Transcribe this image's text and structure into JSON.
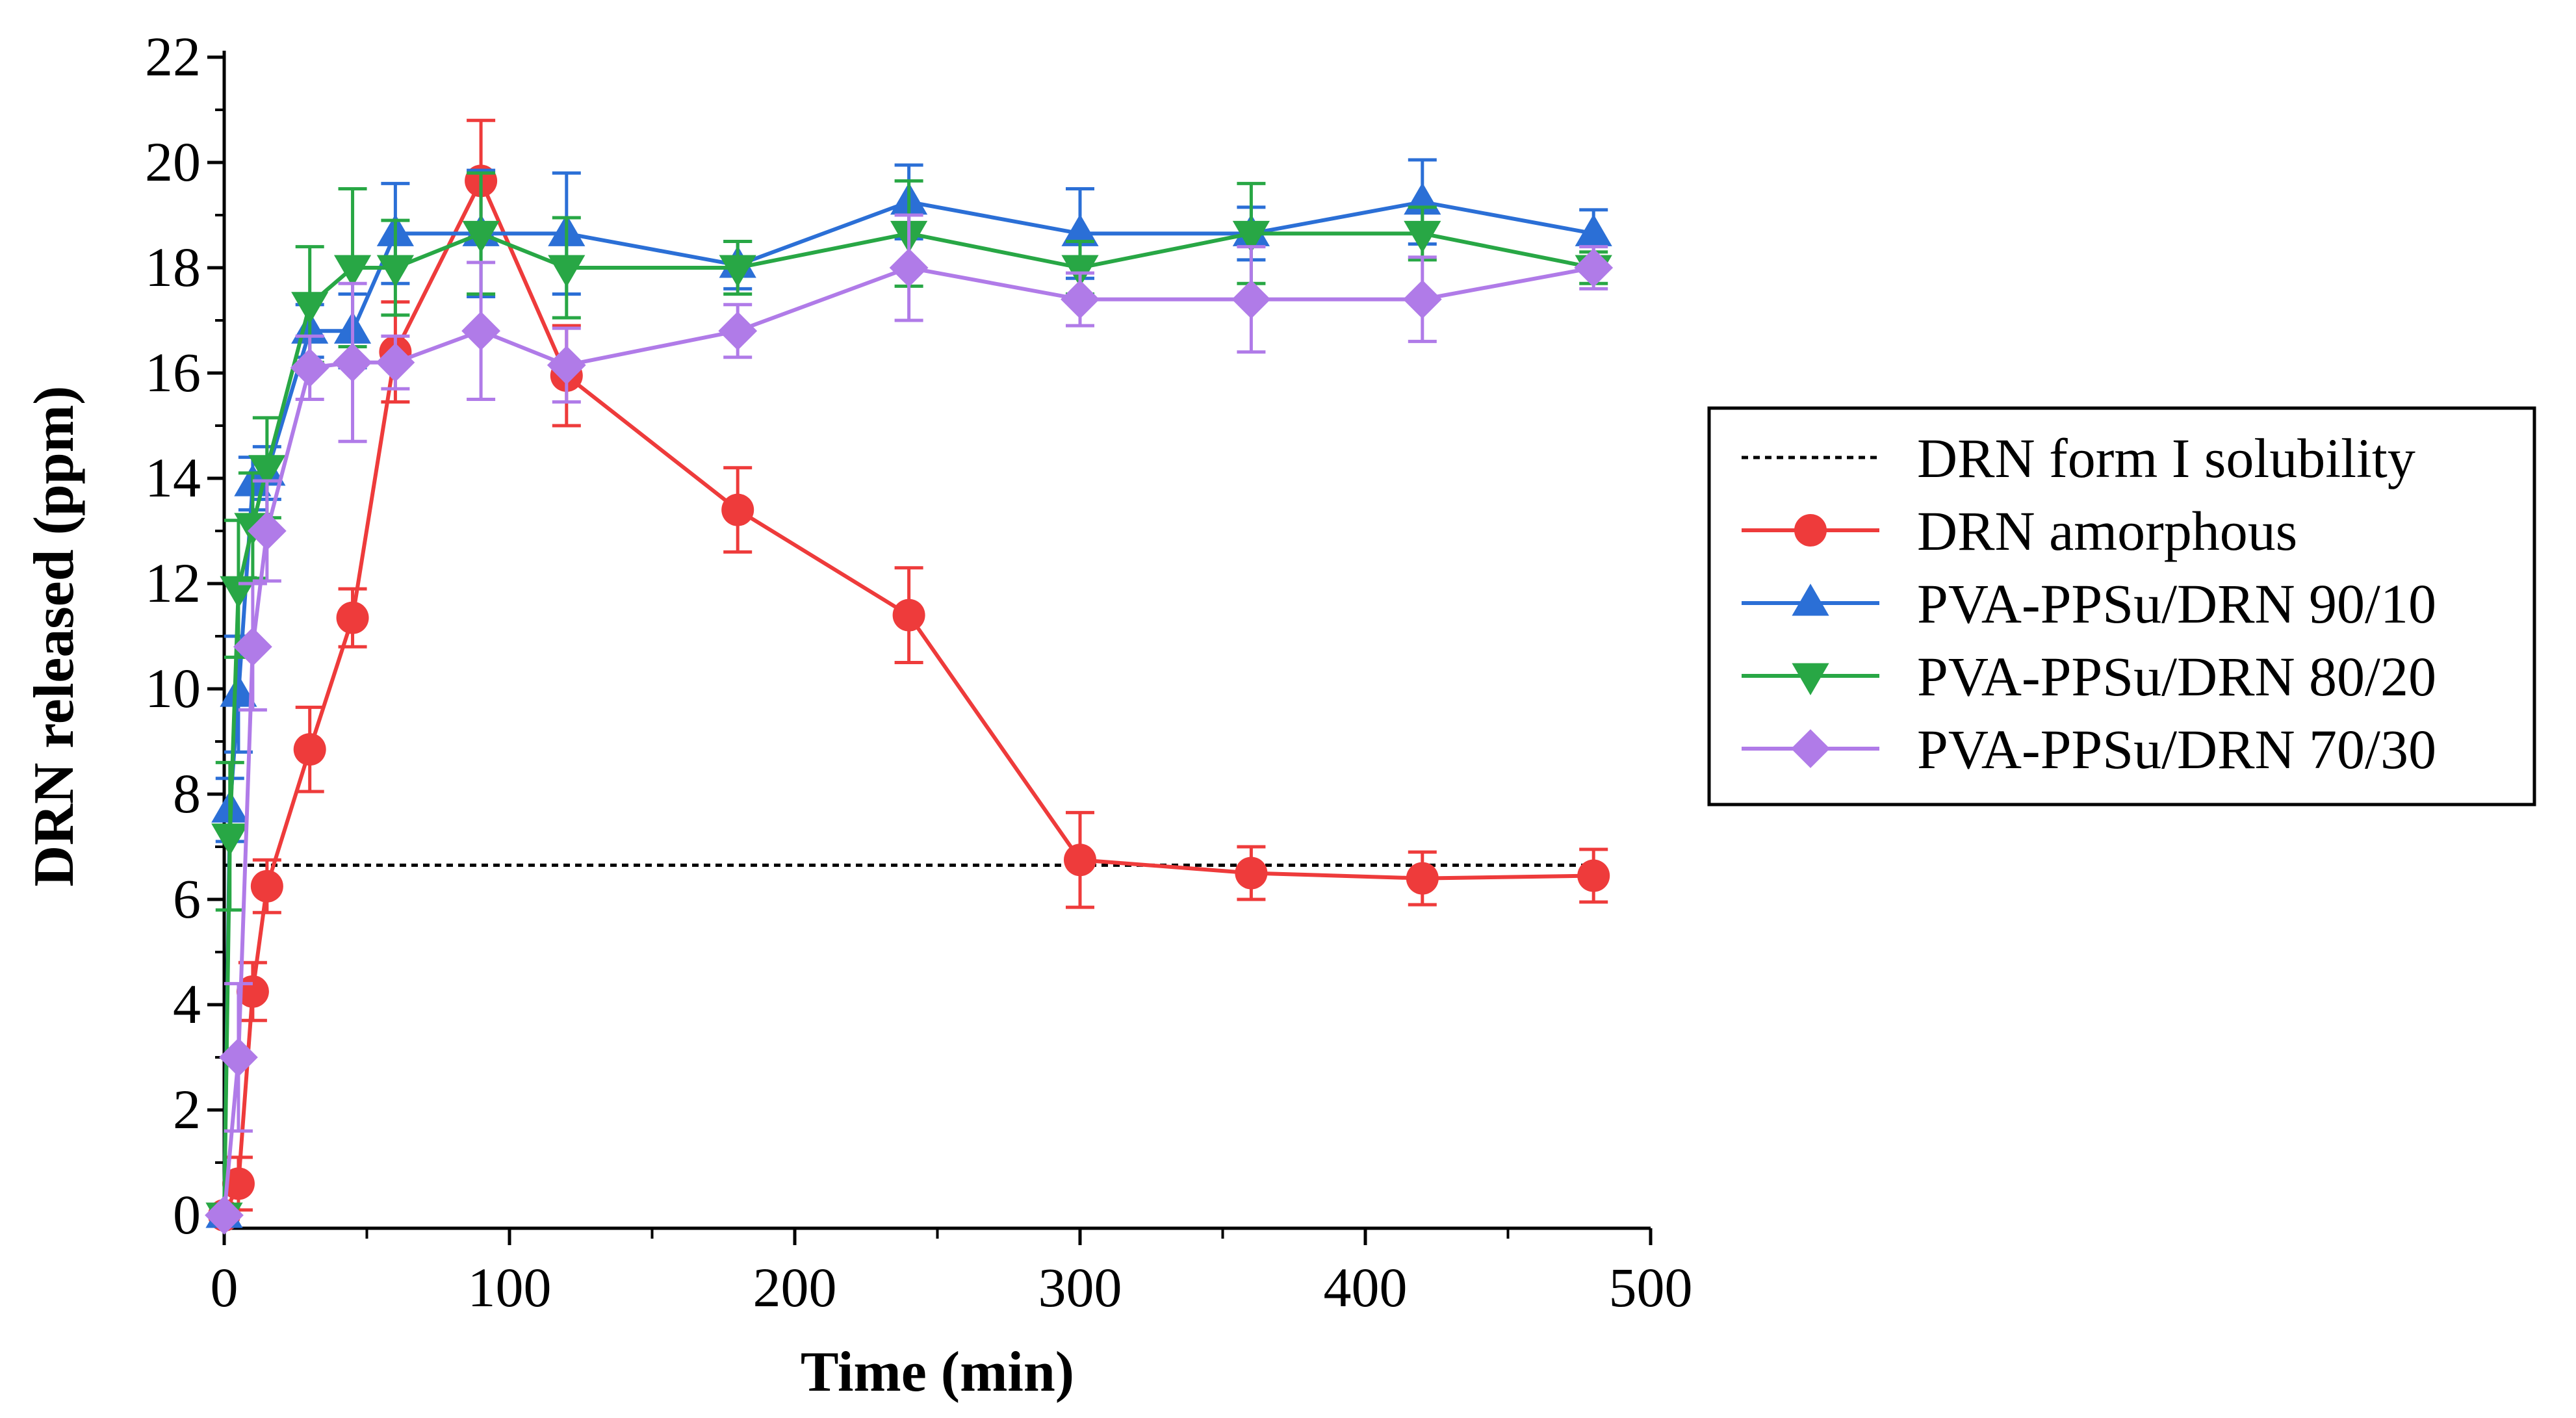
{
  "chart_data": {
    "type": "line",
    "title": "",
    "xlabel": "Time (min)",
    "ylabel": "DRN released (ppm)",
    "xlim": [
      0,
      500
    ],
    "ylim": [
      0,
      22
    ],
    "x_ticks": [
      0,
      100,
      200,
      300,
      400,
      500
    ],
    "x_tick_labels": [
      "0",
      "100",
      "200",
      "300",
      "400",
      "500"
    ],
    "y_ticks": [
      0,
      2,
      4,
      6,
      8,
      10,
      12,
      14,
      16,
      18,
      20,
      22
    ],
    "y_tick_labels": [
      "0",
      "2",
      "4",
      "6",
      "8",
      "10",
      "12",
      "14",
      "16",
      "18",
      "20",
      "22"
    ],
    "grid": false,
    "legend_position": "right",
    "reference_line": {
      "name": "DRN form I solubility",
      "value": 6.65,
      "style": "dotted",
      "color": "#000000"
    },
    "series": [
      {
        "name": "DRN amorphous",
        "color": "#ee3b3b",
        "marker": "circle",
        "x": [
          0,
          5,
          10,
          15,
          30,
          45,
          60,
          90,
          120,
          180,
          240,
          300,
          360,
          420,
          480
        ],
        "values": [
          0,
          0.6,
          4.25,
          6.25,
          8.85,
          11.35,
          16.4,
          19.65,
          15.95,
          13.4,
          11.4,
          6.75,
          6.5,
          6.4,
          6.45
        ],
        "errors": [
          0,
          0.5,
          0.55,
          0.5,
          0.8,
          0.55,
          0.95,
          1.15,
          0.95,
          0.8,
          0.9,
          0.9,
          0.5,
          0.5,
          0.5
        ]
      },
      {
        "name": "PVA-PPSu/DRN 90/10",
        "color": "#2b6fd6",
        "marker": "triangle-up",
        "x": [
          0,
          2,
          5,
          10,
          15,
          30,
          45,
          60,
          90,
          120,
          180,
          240,
          300,
          360,
          420,
          480
        ],
        "values": [
          0,
          7.7,
          9.9,
          13.9,
          14.1,
          16.8,
          16.8,
          18.65,
          18.65,
          18.65,
          18.05,
          19.25,
          18.65,
          18.65,
          19.25,
          18.65
        ],
        "errors": [
          0,
          0.6,
          1.1,
          0.5,
          0.5,
          0.5,
          0.7,
          0.95,
          1.2,
          1.15,
          0.45,
          0.7,
          0.85,
          0.5,
          0.8,
          0.45
        ]
      },
      {
        "name": "PVA-PPSu/DRN 80/20",
        "color": "#28a745",
        "marker": "triangle-down",
        "x": [
          0,
          2,
          5,
          10,
          15,
          30,
          45,
          60,
          90,
          120,
          180,
          240,
          300,
          360,
          420,
          480
        ],
        "values": [
          0,
          7.2,
          11.9,
          13.1,
          14.2,
          17.3,
          18.0,
          18.0,
          18.65,
          18.0,
          18.0,
          18.65,
          18.0,
          18.65,
          18.65,
          18.0
        ],
        "errors": [
          0,
          1.4,
          1.3,
          1.0,
          0.95,
          1.1,
          1.5,
          0.9,
          1.15,
          0.95,
          0.5,
          1.0,
          0.5,
          0.95,
          0.5,
          0.3
        ]
      },
      {
        "name": "PVA-PPSu/DRN 70/30",
        "color": "#b07be8",
        "marker": "diamond",
        "x": [
          0,
          5,
          10,
          15,
          30,
          45,
          60,
          90,
          120,
          180,
          240,
          300,
          360,
          420,
          480
        ],
        "values": [
          0,
          3.0,
          10.8,
          13.0,
          16.1,
          16.2,
          16.2,
          16.8,
          16.15,
          16.8,
          18.0,
          17.4,
          17.4,
          17.4,
          18.0
        ],
        "errors": [
          0,
          1.4,
          1.2,
          0.95,
          0.6,
          1.5,
          0.5,
          1.3,
          0.7,
          0.5,
          1.0,
          0.5,
          1.0,
          0.8,
          0.4
        ]
      }
    ]
  }
}
